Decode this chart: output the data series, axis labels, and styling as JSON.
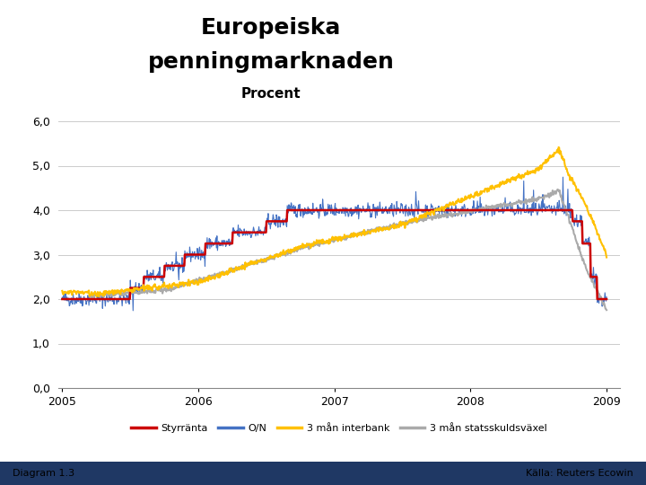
{
  "title_line1": "Europeiska",
  "title_line2": "penningmarknaden",
  "subtitle": "Procent",
  "ylim": [
    0.0,
    6.0
  ],
  "yticks": [
    0.0,
    1.0,
    2.0,
    3.0,
    4.0,
    5.0,
    6.0
  ],
  "xtick_labels": [
    "2005",
    "2006",
    "2007",
    "2008",
    "2009"
  ],
  "legend_labels": [
    "Styrränta",
    "O/N",
    "3 mån interbank",
    "3 mån statsskuldsväxel"
  ],
  "line_colors": [
    "#cc0000",
    "#4472c4",
    "#ffc000",
    "#aaaaaa"
  ],
  "diagram_label": "Diagram 1.3",
  "source_label": "Källa: Reuters Ecowin",
  "footer_color": "#1f3864",
  "bg_color": "#ffffff"
}
